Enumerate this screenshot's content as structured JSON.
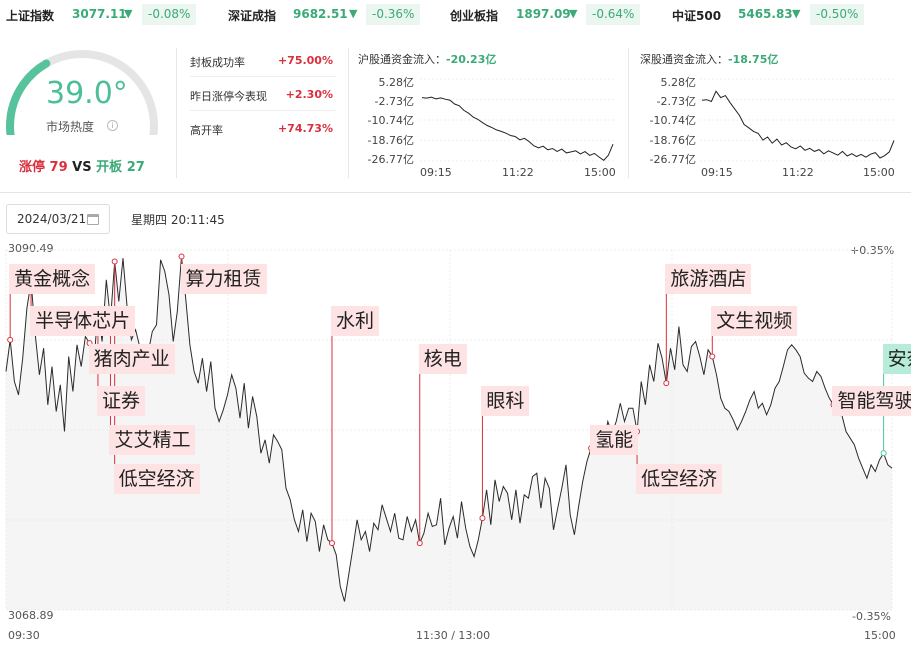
{
  "indices": [
    {
      "name": "上证指数",
      "value": "3077.11",
      "arrow": "▼",
      "pct": "-0.08%"
    },
    {
      "name": "深证成指",
      "value": "9682.51",
      "arrow": "▼",
      "pct": "-0.36%"
    },
    {
      "name": "创业板指",
      "value": "1897.09",
      "arrow": "▼",
      "pct": "-0.64%"
    },
    {
      "name": "中证500",
      "value": "5465.83",
      "arrow": "▼",
      "pct": "-0.50%"
    }
  ],
  "heat": {
    "value": "39.0°",
    "label": "市场热度",
    "info_icon": "info-icon",
    "gauge_fraction": 0.39
  },
  "limit": {
    "up_label": "涨停",
    "up_count": "79",
    "vs": "VS",
    "open_label": "开板",
    "open_count": "27"
  },
  "stats": [
    {
      "label": "封板成功率",
      "value": "+75.00%"
    },
    {
      "label": "昨日涨停今表现",
      "value": "+2.30%"
    },
    {
      "label": "高开率",
      "value": "+74.73%"
    }
  ],
  "flows": [
    {
      "label": "沪股通资金流入：",
      "value": "-20.23亿",
      "yticks": [
        "5.28亿",
        "-2.73亿",
        "-10.74亿",
        "-18.76亿",
        "-26.77亿"
      ],
      "xticks": [
        "09:15",
        "11:22",
        "15:00"
      ],
      "series": [
        -2.0,
        -2.2,
        -1.8,
        -2.5,
        -2.1,
        -2.6,
        -3.0,
        -4.5,
        -5.2,
        -7.0,
        -8.1,
        -9.6,
        -10.5,
        -11.8,
        -12.9,
        -13.7,
        -14.6,
        -15.2,
        -15.9,
        -16.8,
        -17.2,
        -18.5,
        -17.9,
        -19.2,
        -20.8,
        -21.6,
        -21.0,
        -22.4,
        -21.9,
        -23.0,
        -22.1,
        -23.6,
        -23.2,
        -22.8,
        -24.0,
        -23.1,
        -24.6,
        -23.8,
        -25.2,
        -26.5,
        -24.6,
        -20.2
      ]
    },
    {
      "label": "深股通资金流入：",
      "value": "-18.75亿",
      "yticks": [
        "5.28亿",
        "-2.73亿",
        "-10.74亿",
        "-18.76亿",
        "-26.77亿"
      ],
      "xticks": [
        "09:15",
        "11:22",
        "15:00"
      ],
      "series": [
        -3.0,
        -2.8,
        -3.5,
        0.5,
        -2.0,
        -1.2,
        -4.0,
        -6.5,
        -9.0,
        -12.5,
        -13.8,
        -15.2,
        -16.0,
        -18.6,
        -17.4,
        -19.8,
        -18.2,
        -20.5,
        -19.6,
        -21.3,
        -22.0,
        -20.9,
        -22.6,
        -21.8,
        -23.0,
        -22.3,
        -24.0,
        -22.8,
        -23.6,
        -24.5,
        -23.0,
        -24.8,
        -23.9,
        -25.0,
        -24.2,
        -25.3,
        -24.1,
        -23.5,
        -25.6,
        -24.7,
        -23.2,
        -18.75
      ]
    }
  ],
  "date": "2024/03/21",
  "datetime": "星期四 20:11:45",
  "main_chart": {
    "y_top": "3090.49",
    "y_bottom": "3068.89",
    "pct_top": "+0.35%",
    "pct_bottom": "-0.35%",
    "x_start": "09:30",
    "x_mid": "11:30 / 13:00",
    "x_end": "15:00",
    "ymin": 3068.89,
    "ymax": 3090.49,
    "series": [
      3083.2,
      3085.1,
      3082.6,
      3081.8,
      3084.0,
      3087.0,
      3088.6,
      3085.4,
      3083.0,
      3084.6,
      3081.2,
      3083.5,
      3080.8,
      3082.4,
      3079.6,
      3084.1,
      3082.0,
      3084.8,
      3083.5,
      3085.3,
      3084.9,
      3083.6,
      3086.9,
      3085.0,
      3088.7,
      3086.3,
      3089.8,
      3087.4,
      3090.0,
      3087.0,
      3085.1,
      3085.7,
      3084.7,
      3083.1,
      3084.3,
      3085.6,
      3086.0,
      3089.9,
      3089.2,
      3087.8,
      3085.0,
      3086.8,
      3090.1,
      3087.6,
      3084.8,
      3083.2,
      3082.5,
      3084.0,
      3082.0,
      3083.8,
      3081.0,
      3080.2,
      3080.9,
      3081.8,
      3083.0,
      3082.2,
      3080.4,
      3082.5,
      3079.8,
      3081.7,
      3080.5,
      3078.3,
      3079.1,
      3077.7,
      3079.4,
      3079.0,
      3078.5,
      3076.2,
      3075.5,
      3074.3,
      3073.6,
      3074.9,
      3073.0,
      3074.7,
      3074.2,
      3072.4,
      3074.0,
      3073.1,
      3072.9,
      3072.2,
      3070.3,
      3069.4,
      3071.0,
      3072.6,
      3074.3,
      3073.1,
      3073.6,
      3072.4,
      3074.1,
      3073.7,
      3075.2,
      3074.4,
      3073.6,
      3074.7,
      3073.2,
      3073.1,
      3074.5,
      3073.6,
      3074.3,
      3072.9,
      3073.5,
      3074.7,
      3073.9,
      3074.0,
      3075.6,
      3072.8,
      3073.8,
      3074.5,
      3073.2,
      3075.4,
      3073.8,
      3072.7,
      3072.1,
      3073.1,
      3074.4,
      3076.1,
      3074.0,
      3076.7,
      3075.4,
      3076.3,
      3075.9,
      3074.3,
      3076.1,
      3074.1,
      3075.8,
      3075.6,
      3076.9,
      3077.1,
      3075.0,
      3076.8,
      3076.2,
      3073.7,
      3075.0,
      3076.2,
      3077.6,
      3074.6,
      3073.4,
      3075.1,
      3076.6,
      3077.8,
      3078.6,
      3079.5,
      3079.6,
      3078.9,
      3080.2,
      3079.5,
      3080.2,
      3081.3,
      3080.2,
      3081.0,
      3081.0,
      3079.6,
      3082.6,
      3081.2,
      3083.6,
      3082.6,
      3084.9,
      3084.0,
      3082.5,
      3084.6,
      3083.3,
      3085.9,
      3083.6,
      3083.2,
      3084.7,
      3085.0,
      3084.1,
      3083.0,
      3084.5,
      3084.1,
      3083.0,
      3081.6,
      3081.0,
      3080.8,
      3080.3,
      3079.7,
      3080.2,
      3080.8,
      3081.5,
      3082.0,
      3081.0,
      3081.3,
      3080.6,
      3081.2,
      3082.2,
      3082.6,
      3083.5,
      3084.5,
      3084.8,
      3084.5,
      3084.1,
      3083.1,
      3082.8,
      3082.6,
      3083.2,
      3082.9,
      3082.2,
      3081.6,
      3081.2,
      3080.7,
      3080.6,
      3079.6,
      3079.2,
      3078.8,
      3078.0,
      3077.4,
      3076.8,
      3077.6,
      3077.2,
      3077.9,
      3078.3,
      3077.6,
      3077.4
    ]
  },
  "tags": [
    {
      "text": "黄金概念",
      "color": "red",
      "anchor": 1
    },
    {
      "text": "半导体芯片",
      "color": "red",
      "anchor": 6
    },
    {
      "text": "猪肉产业",
      "color": "red",
      "anchor": 20
    },
    {
      "text": "证券",
      "color": "red",
      "anchor": 22
    },
    {
      "text": "艾艾精工",
      "color": "red",
      "anchor": 25
    },
    {
      "text": "低空经济",
      "color": "red",
      "anchor": 26
    },
    {
      "text": "算力租赁",
      "color": "red",
      "anchor": 42
    },
    {
      "text": "水利",
      "color": "red",
      "anchor": 78
    },
    {
      "text": "核电",
      "color": "red",
      "anchor": 99
    },
    {
      "text": "眼科",
      "color": "red",
      "anchor": 114
    },
    {
      "text": "氢能",
      "color": "red",
      "anchor": 140
    },
    {
      "text": "低空经济",
      "color": "red",
      "anchor": 151
    },
    {
      "text": "旅游酒店",
      "color": "red",
      "anchor": 158
    },
    {
      "text": "文生视频",
      "color": "red",
      "anchor": 169
    },
    {
      "text": "智能驾驶",
      "color": "red",
      "anchor": 198
    },
    {
      "text": "安奈儿",
      "color": "cyan",
      "anchor": 210
    }
  ]
}
